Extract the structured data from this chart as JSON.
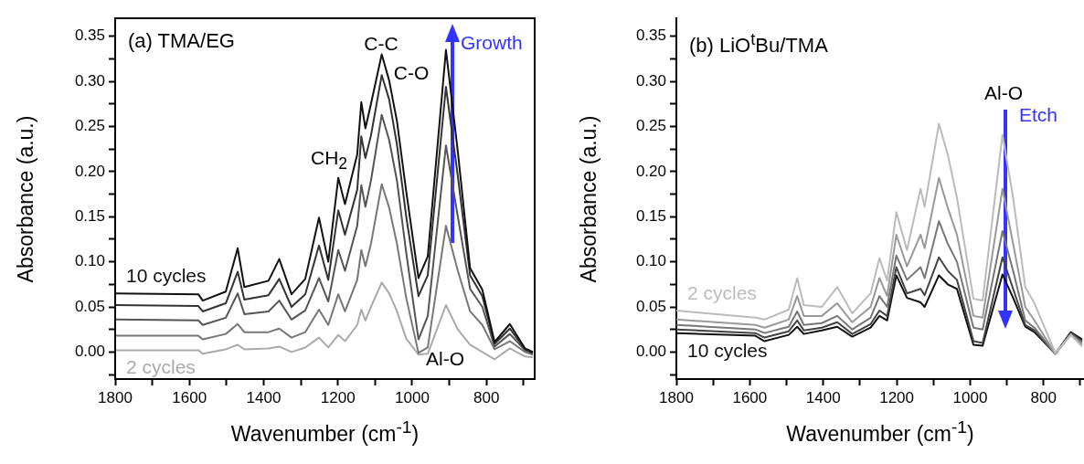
{
  "chart_data": [
    {
      "type": "line",
      "xlabel": "Wavenumber (cm$^{-1}$)",
      "ylabel": "Absorbance (a.u.)",
      "xlim": [
        1800,
        670
      ],
      "xticks": [
        1800,
        {
          "value": 1700,
          "label": null
        },
        1600,
        {
          "value": 1500,
          "label": null
        },
        1400,
        {
          "value": 1300,
          "label": null
        },
        1200,
        {
          "value": 1100,
          "label": null
        },
        1000,
        {
          "value": 900,
          "label": null
        },
        800,
        {
          "value": 700,
          "label": null
        }
      ],
      "ylim": [
        -0.03,
        0.37
      ],
      "yticks": [
        {
          "value": -0.025,
          "label": null
        },
        {
          "value": 0,
          "label": "0.00"
        },
        {
          "value": 0.025,
          "label": null
        },
        0.05,
        {
          "value": 0.075,
          "label": null
        },
        {
          "value": 0.1,
          "label": "0.10"
        },
        {
          "value": 0.125,
          "label": null
        },
        0.15,
        {
          "value": 0.175,
          "label": null
        },
        {
          "value": 0.2,
          "label": "0.20"
        },
        {
          "value": 0.225,
          "label": null
        },
        0.25,
        {
          "value": 0.275,
          "label": null
        },
        {
          "value": 0.3,
          "label": "0.30"
        },
        {
          "value": 0.325,
          "label": null
        },
        0.35
      ],
      "x": [
        1800,
        1576,
        1564,
        1502,
        1470,
        1452,
        1387,
        1358,
        1325,
        1288,
        1251,
        1226,
        1199,
        1181,
        1148,
        1137,
        1126,
        1111,
        1082,
        1062,
        1041,
        1016,
        983,
        958,
        909,
        877,
        844,
        811,
        778,
        737,
        696,
        675
      ],
      "series": [
        {
          "name": "10 cycles",
          "color": "#111111",
          "values": [
            0.065,
            0.064,
            0.057,
            0.067,
            0.115,
            0.072,
            0.079,
            0.103,
            0.064,
            0.081,
            0.149,
            0.1,
            0.193,
            0.164,
            0.219,
            0.277,
            0.248,
            0.275,
            0.33,
            0.301,
            0.256,
            0.178,
            0.082,
            0.106,
            0.335,
            0.222,
            0.093,
            0.069,
            0.011,
            0.031,
            0.004,
            0.0
          ]
        },
        {
          "color": "#333333",
          "values": [
            0.052,
            0.051,
            0.045,
            0.054,
            0.089,
            0.058,
            0.063,
            0.081,
            0.05,
            0.064,
            0.118,
            0.08,
            0.157,
            0.13,
            0.18,
            0.239,
            0.215,
            0.24,
            0.307,
            0.28,
            0.23,
            0.15,
            0.062,
            0.085,
            0.294,
            0.195,
            0.085,
            0.062,
            0.009,
            0.026,
            0.003,
            -0.001
          ]
        },
        {
          "color": "#555555",
          "values": [
            0.036,
            0.035,
            0.03,
            0.038,
            0.065,
            0.042,
            0.045,
            0.057,
            0.036,
            0.046,
            0.082,
            0.056,
            0.113,
            0.09,
            0.14,
            0.185,
            0.161,
            0.19,
            0.263,
            0.235,
            0.19,
            0.11,
            0.014,
            0.04,
            0.229,
            0.15,
            0.07,
            0.05,
            0.006,
            0.02,
            0.002,
            -0.002
          ]
        },
        {
          "color": "#777777",
          "values": [
            0.018,
            0.018,
            0.014,
            0.02,
            0.031,
            0.022,
            0.022,
            0.026,
            0.016,
            0.022,
            0.047,
            0.03,
            0.064,
            0.045,
            0.08,
            0.113,
            0.095,
            0.12,
            0.186,
            0.16,
            0.12,
            0.06,
            -0.001,
            0.005,
            0.14,
            0.09,
            0.045,
            0.03,
            0.003,
            0.012,
            0.0,
            -0.003
          ]
        },
        {
          "name": "2 cycles",
          "color": "#aaaaaa",
          "values": [
            0.002,
            0.002,
            -0.002,
            0.003,
            0.008,
            0.003,
            0.004,
            0.006,
            0.0,
            0.005,
            0.016,
            0.005,
            0.019,
            0.012,
            0.03,
            0.047,
            0.035,
            0.05,
            0.077,
            0.065,
            0.045,
            0.015,
            -0.003,
            -0.002,
            0.052,
            0.025,
            0.008,
            0.0,
            -0.008,
            0.004,
            -0.005,
            -0.006
          ]
        }
      ],
      "annotations": [
        "(a) TMA/EG",
        "C-C",
        "C-O",
        "CH$_{2}$",
        "Al-O",
        "Growth"
      ]
    },
    {
      "type": "line",
      "xlabel": "Wavenumber (cm$^{-1}$)",
      "ylabel": "Absorbance (a.u.)",
      "xlim": [
        1800,
        690
      ],
      "xticks": [
        1800,
        {
          "value": 1700,
          "label": null
        },
        1600,
        {
          "value": 1500,
          "label": null
        },
        1400,
        {
          "value": 1300,
          "label": null
        },
        1200,
        {
          "value": 1100,
          "label": null
        },
        1000,
        {
          "value": 900,
          "label": null
        },
        800,
        {
          "value": 700,
          "label": null
        }
      ],
      "ylim": [
        -0.03,
        0.37
      ],
      "yticks": [
        {
          "value": -0.025,
          "label": null
        },
        {
          "value": 0,
          "label": "0.00"
        },
        {
          "value": 0.025,
          "label": null
        },
        0.05,
        {
          "value": 0.075,
          "label": null
        },
        {
          "value": 0.1,
          "label": "0.10"
        },
        {
          "value": 0.125,
          "label": null
        },
        0.15,
        {
          "value": 0.175,
          "label": null
        },
        {
          "value": 0.2,
          "label": "0.20"
        },
        {
          "value": 0.225,
          "label": null
        },
        0.25,
        {
          "value": 0.275,
          "label": null
        },
        {
          "value": 0.3,
          "label": "0.30"
        },
        {
          "value": 0.325,
          "label": null
        },
        0.35
      ],
      "x": [
        1800,
        1585,
        1560,
        1494,
        1471,
        1453,
        1404,
        1362,
        1321,
        1271,
        1247,
        1226,
        1201,
        1172,
        1135,
        1124,
        1085,
        1061,
        1036,
        991,
        966,
        912,
        883,
        850,
        825,
        768,
        726,
        695
      ],
      "series": [
        {
          "name": "2 cycles",
          "color": "#bbbbbb",
          "values": [
            0.046,
            0.038,
            0.036,
            0.047,
            0.082,
            0.052,
            0.05,
            0.072,
            0.043,
            0.065,
            0.104,
            0.079,
            0.155,
            0.113,
            0.181,
            0.161,
            0.253,
            0.219,
            0.171,
            0.059,
            0.057,
            0.241,
            0.171,
            0.072,
            0.054,
            -0.001,
            0.019,
            0.006
          ]
        },
        {
          "color": "#999999",
          "values": [
            0.036,
            0.03,
            0.027,
            0.036,
            0.062,
            0.04,
            0.04,
            0.054,
            0.033,
            0.05,
            0.082,
            0.062,
            0.13,
            0.095,
            0.13,
            0.115,
            0.193,
            0.16,
            0.13,
            0.04,
            0.038,
            0.181,
            0.12,
            0.05,
            0.035,
            -0.002,
            0.019,
            0.008
          ]
        },
        {
          "color": "#777777",
          "values": [
            0.03,
            0.025,
            0.021,
            0.028,
            0.045,
            0.03,
            0.032,
            0.04,
            0.025,
            0.038,
            0.062,
            0.05,
            0.107,
            0.08,
            0.094,
            0.082,
            0.145,
            0.12,
            0.1,
            0.027,
            0.025,
            0.134,
            0.09,
            0.035,
            0.027,
            -0.002,
            0.02,
            0.01
          ]
        },
        {
          "color": "#444444",
          "values": [
            0.025,
            0.021,
            0.016,
            0.023,
            0.035,
            0.024,
            0.027,
            0.033,
            0.02,
            0.031,
            0.046,
            0.04,
            0.094,
            0.065,
            0.07,
            0.063,
            0.105,
            0.09,
            0.08,
            0.012,
            0.01,
            0.105,
            0.07,
            0.03,
            0.024,
            -0.002,
            0.021,
            0.012
          ]
        },
        {
          "name": "10 cycles",
          "color": "#111111",
          "values": [
            0.021,
            0.018,
            0.012,
            0.019,
            0.028,
            0.02,
            0.024,
            0.028,
            0.017,
            0.027,
            0.04,
            0.035,
            0.085,
            0.06,
            0.055,
            0.05,
            0.085,
            0.075,
            0.07,
            0.008,
            0.007,
            0.086,
            0.06,
            0.028,
            0.022,
            -0.002,
            0.022,
            0.014
          ]
        }
      ],
      "annotations": [
        "(b) LiO$^{t}$Bu/TMA",
        "Al-O",
        "Etch"
      ]
    }
  ]
}
